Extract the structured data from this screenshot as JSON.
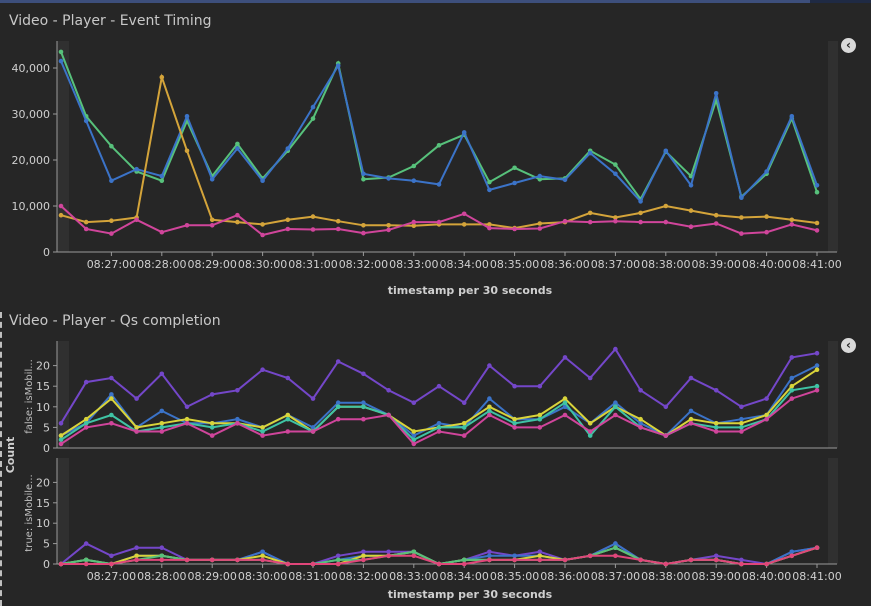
{
  "panels": {
    "timing_title": "Video - Player - Event Timing",
    "qs_title": "Video - Player - Qs completion",
    "collapse_icon": "chevron-left-icon"
  },
  "colors": {
    "green": "#57c17b",
    "blue": "#3b73c8",
    "orange": "#d4a43a",
    "magenta": "#d0459b",
    "purple": "#7447c9",
    "yellow": "#d9d43a",
    "teal": "#3fc3a4",
    "pink": "#e0467a"
  },
  "chart_data": [
    {
      "type": "line",
      "title": "Video - Player - Event Timing",
      "xlabel": "timestamp per 30 seconds",
      "ylabel": "",
      "ylim": [
        0,
        45000
      ],
      "yticks": [
        "0",
        "10,000",
        "20,000",
        "30,000",
        "40,000"
      ],
      "ytick_values": [
        0,
        10000,
        20000,
        30000,
        40000
      ],
      "xticks": [
        "08:27:00",
        "08:28:00",
        "08:29:00",
        "08:30:00",
        "08:31:00",
        "08:32:00",
        "08:33:00",
        "08:34:00",
        "08:35:00",
        "08:36:00",
        "08:37:00",
        "08:38:00",
        "08:39:00",
        "08:40:00",
        "08:41:00"
      ],
      "x": [
        "08:26:00",
        "08:26:30",
        "08:27:00",
        "08:27:30",
        "08:28:00",
        "08:28:30",
        "08:29:00",
        "08:29:30",
        "08:30:00",
        "08:30:30",
        "08:31:00",
        "08:31:30",
        "08:32:00",
        "08:32:30",
        "08:33:00",
        "08:33:30",
        "08:34:00",
        "08:34:30",
        "08:35:00",
        "08:35:30",
        "08:36:00",
        "08:36:30",
        "08:37:00",
        "08:37:30",
        "08:38:00",
        "08:38:30",
        "08:39:00",
        "08:39:30",
        "08:40:00",
        "08:40:30",
        "08:41:00"
      ],
      "series": [
        {
          "color": "green",
          "values": [
            43500,
            29500,
            23000,
            17500,
            15500,
            28500,
            16500,
            23500,
            16000,
            22000,
            29000,
            41000,
            15800,
            16200,
            18700,
            23200,
            25500,
            15200,
            18300,
            15800,
            16000,
            22000,
            19000,
            11500,
            21800,
            16500,
            33000,
            12000,
            17000,
            29000,
            13000
          ]
        },
        {
          "color": "blue",
          "values": [
            41500,
            28500,
            15500,
            18000,
            16500,
            29500,
            15800,
            22500,
            15500,
            22500,
            31500,
            40500,
            17000,
            16000,
            15500,
            14700,
            26000,
            13500,
            15000,
            16500,
            15700,
            21500,
            17000,
            11000,
            22000,
            14500,
            34500,
            11800,
            17500,
            29500,
            14500
          ]
        },
        {
          "color": "orange",
          "values": [
            8000,
            6500,
            6800,
            7500,
            38000,
            22000,
            7000,
            6500,
            6000,
            7000,
            7700,
            6700,
            5800,
            5800,
            5700,
            6000,
            6000,
            6000,
            5200,
            6200,
            6500,
            8500,
            7500,
            8500,
            10000,
            9000,
            8000,
            7500,
            7700,
            7000,
            6300
          ]
        },
        {
          "color": "magenta",
          "values": [
            10000,
            5000,
            4000,
            7000,
            4300,
            5800,
            5800,
            8000,
            3700,
            5000,
            4900,
            5000,
            4100,
            4800,
            6500,
            6500,
            8300,
            5200,
            5000,
            5100,
            6700,
            6500,
            6700,
            6500,
            6500,
            5500,
            6200,
            4000,
            4300,
            6000,
            4700
          ]
        }
      ]
    },
    {
      "type": "line",
      "title": "Video - Player - Qs completion",
      "xlabel": "timestamp per 30 seconds",
      "ylabel": "Count",
      "row_label": "false: isMobil...",
      "ylim": [
        0,
        25
      ],
      "yticks": [
        "0",
        "5",
        "10",
        "15",
        "20"
      ],
      "ytick_values": [
        0,
        5,
        10,
        15,
        20
      ],
      "x": [
        "08:26:00",
        "08:26:30",
        "08:27:00",
        "08:27:30",
        "08:28:00",
        "08:28:30",
        "08:29:00",
        "08:29:30",
        "08:30:00",
        "08:30:30",
        "08:31:00",
        "08:31:30",
        "08:32:00",
        "08:32:30",
        "08:33:00",
        "08:33:30",
        "08:34:00",
        "08:34:30",
        "08:35:00",
        "08:35:30",
        "08:36:00",
        "08:36:30",
        "08:37:00",
        "08:37:30",
        "08:38:00",
        "08:38:30",
        "08:39:00",
        "08:39:30",
        "08:40:00",
        "08:40:30",
        "08:41:00"
      ],
      "series": [
        {
          "color": "purple",
          "values": [
            6,
            16,
            17,
            12,
            18,
            10,
            13,
            14,
            19,
            17,
            12,
            21,
            18,
            14,
            11,
            15,
            11,
            20,
            15,
            15,
            22,
            17,
            24,
            14,
            10,
            17,
            14,
            10,
            12,
            22,
            23
          ]
        },
        {
          "color": "blue",
          "values": [
            3,
            6,
            13,
            5,
            9,
            6,
            6,
            7,
            5,
            8,
            5,
            11,
            11,
            8,
            3,
            6,
            5,
            12,
            7,
            7,
            10,
            6,
            11,
            6,
            3,
            9,
            6,
            7,
            8,
            17,
            20
          ]
        },
        {
          "color": "yellow",
          "values": [
            3,
            7,
            12,
            5,
            6,
            7,
            6,
            6,
            5,
            8,
            4,
            10,
            10,
            8,
            4,
            5,
            6,
            10,
            7,
            8,
            12,
            6,
            10,
            7,
            3,
            7,
            6,
            6,
            8,
            15,
            19
          ]
        },
        {
          "color": "teal",
          "values": [
            2,
            6,
            8,
            4,
            5,
            6,
            5,
            6,
            4,
            7,
            4,
            10,
            10,
            8,
            2,
            5,
            5,
            9,
            6,
            7,
            11,
            3,
            10,
            5,
            3,
            6,
            5,
            5,
            7,
            14,
            15
          ]
        },
        {
          "color": "magenta",
          "values": [
            1,
            5,
            6,
            4,
            4,
            6,
            3,
            6,
            3,
            4,
            4,
            7,
            7,
            8,
            1,
            4,
            3,
            8,
            5,
            5,
            8,
            4,
            8,
            5,
            3,
            6,
            4,
            4,
            7,
            12,
            14
          ]
        }
      ]
    },
    {
      "type": "line",
      "row_label": "true: isMobile...",
      "xlabel": "timestamp per 30 seconds",
      "ylim": [
        0,
        25
      ],
      "yticks": [
        "0",
        "5",
        "10",
        "15",
        "20"
      ],
      "ytick_values": [
        0,
        5,
        10,
        15,
        20
      ],
      "xticks": [
        "08:27:00",
        "08:28:00",
        "08:29:00",
        "08:30:00",
        "08:31:00",
        "08:32:00",
        "08:33:00",
        "08:34:00",
        "08:35:00",
        "08:36:00",
        "08:37:00",
        "08:38:00",
        "08:39:00",
        "08:40:00",
        "08:41:00"
      ],
      "x": [
        "08:26:00",
        "08:26:30",
        "08:27:00",
        "08:27:30",
        "08:28:00",
        "08:28:30",
        "08:29:00",
        "08:29:30",
        "08:30:00",
        "08:30:30",
        "08:31:00",
        "08:31:30",
        "08:32:00",
        "08:32:30",
        "08:33:00",
        "08:33:30",
        "08:34:00",
        "08:34:30",
        "08:35:00",
        "08:35:30",
        "08:36:00",
        "08:36:30",
        "08:37:00",
        "08:37:30",
        "08:38:00",
        "08:38:30",
        "08:39:00",
        "08:39:30",
        "08:40:00",
        "08:40:30",
        "08:41:00"
      ],
      "series": [
        {
          "color": "purple",
          "values": [
            0,
            5,
            2,
            4,
            4,
            1,
            1,
            1,
            3,
            0,
            0,
            2,
            3,
            3,
            3,
            0,
            1,
            3,
            2,
            3,
            1,
            2,
            5,
            1,
            0,
            1,
            2,
            1,
            0,
            3,
            4
          ]
        },
        {
          "color": "blue",
          "values": [
            0,
            1,
            0,
            2,
            2,
            1,
            1,
            1,
            3,
            0,
            0,
            1,
            2,
            2,
            3,
            0,
            1,
            2,
            2,
            2,
            1,
            2,
            5,
            1,
            0,
            1,
            1,
            0,
            0,
            3,
            4
          ]
        },
        {
          "color": "yellow",
          "values": [
            0,
            1,
            0,
            2,
            2,
            1,
            1,
            1,
            2,
            0,
            0,
            0,
            2,
            2,
            3,
            0,
            1,
            1,
            1,
            2,
            1,
            2,
            4,
            1,
            0,
            1,
            1,
            0,
            0,
            2,
            4
          ]
        },
        {
          "color": "green",
          "values": [
            0,
            1,
            0,
            1,
            2,
            1,
            1,
            1,
            1,
            0,
            0,
            1,
            1,
            2,
            3,
            0,
            1,
            1,
            1,
            1,
            1,
            2,
            4,
            1,
            0,
            1,
            1,
            0,
            0,
            2,
            4
          ]
        },
        {
          "color": "pink",
          "values": [
            0,
            0,
            0,
            1,
            1,
            1,
            1,
            1,
            1,
            0,
            0,
            0,
            1,
            2,
            2,
            0,
            0,
            1,
            1,
            1,
            1,
            2,
            2,
            1,
            0,
            1,
            1,
            0,
            0,
            2,
            4
          ]
        }
      ]
    }
  ]
}
